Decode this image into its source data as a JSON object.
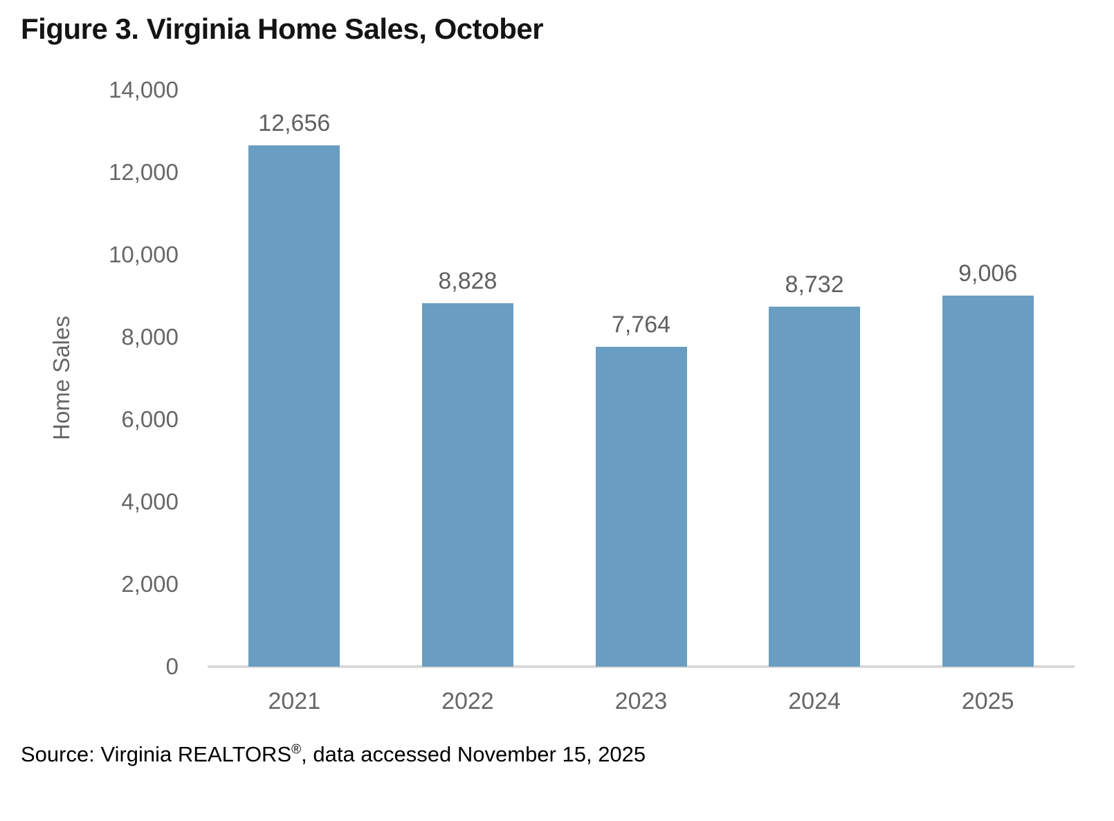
{
  "title": "Figure 3. Virginia Home Sales, October",
  "chart_data": {
    "type": "bar",
    "title": "Figure 3. Virginia Home Sales, October",
    "categories": [
      "2021",
      "2022",
      "2023",
      "2024",
      "2025"
    ],
    "values": [
      12656,
      8828,
      7764,
      8732,
      9006
    ],
    "value_labels": [
      "12,656",
      "8,828",
      "7,764",
      "8,732",
      "9,006"
    ],
    "xlabel": "",
    "ylabel": "Home Sales",
    "ylim": [
      0,
      14000
    ],
    "y_tick_step": 2000,
    "y_ticks": [
      {
        "label": "0",
        "value": 0
      },
      {
        "label": "2,000",
        "value": 2000
      },
      {
        "label": "4,000",
        "value": 4000
      },
      {
        "label": "6,000",
        "value": 6000
      },
      {
        "label": "8,000",
        "value": 8000
      },
      {
        "label": "10,000",
        "value": 10000
      },
      {
        "label": "12,000",
        "value": 12000
      },
      {
        "label": "14,000",
        "value": 14000
      }
    ],
    "grid": false,
    "legend_position": "none",
    "bar_color": "#6A9DC2",
    "axis_line_color": "#D9D9D9",
    "tick_text_color": "#666666",
    "data_label_color": "#606060"
  },
  "source": {
    "prefix": "Source: Virginia REALTORS",
    "registered_mark": "®",
    "suffix": ", data accessed November 15, 2025"
  }
}
